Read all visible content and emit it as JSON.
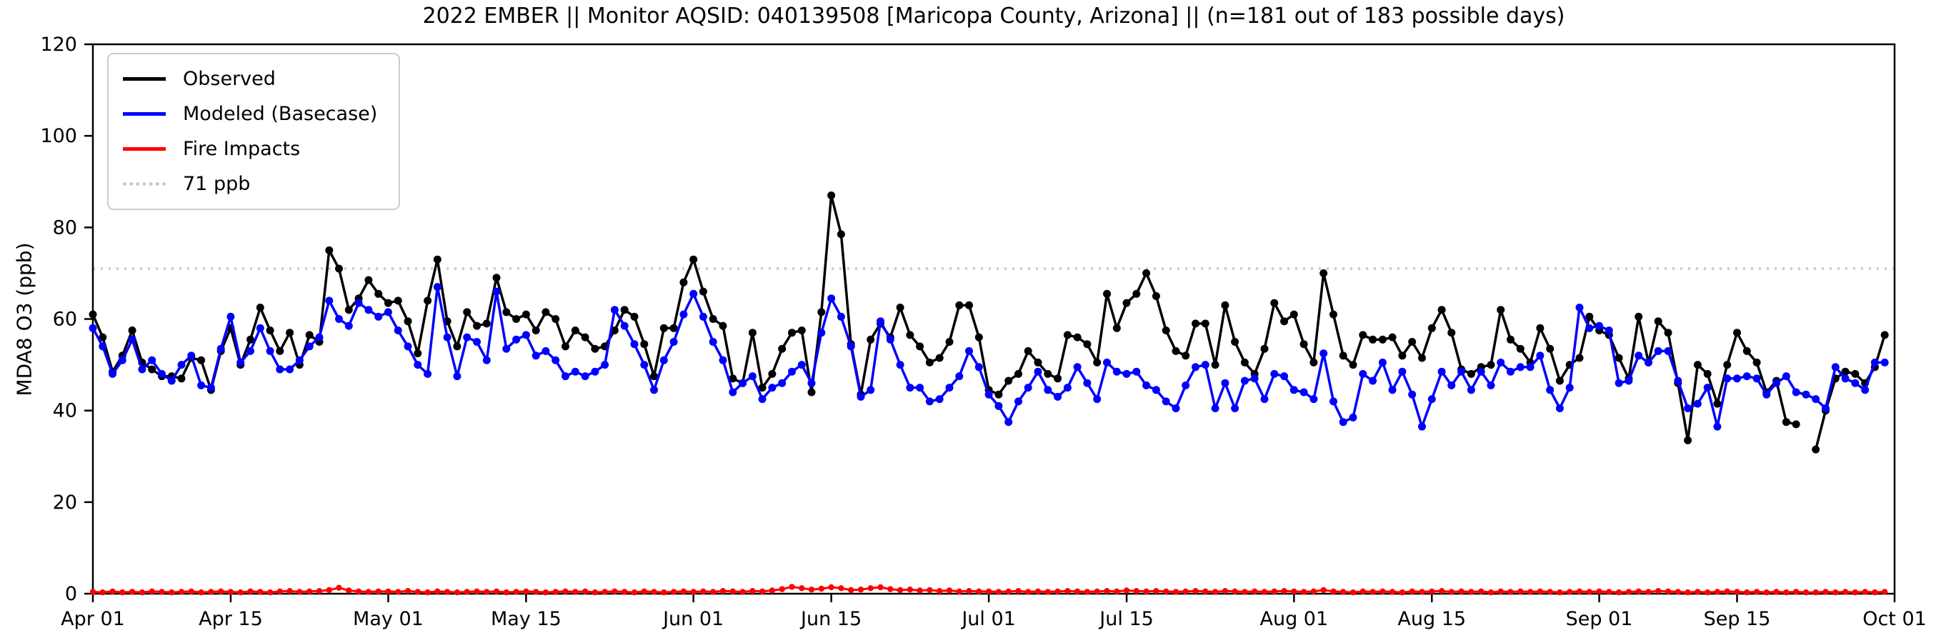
{
  "title": "2022 EMBER || Monitor AQSID: 040139508 [Maricopa County, Arizona] || (n=181 out of 183 possible days)",
  "y_axis": {
    "label": "MDA8 O3 (ppb)"
  },
  "legend": {
    "items": [
      {
        "label": "Observed",
        "color": "#000000",
        "style": "solid"
      },
      {
        "label": "Modeled (Basecase)",
        "color": "#0000ff",
        "style": "solid"
      },
      {
        "label": "Fire Impacts",
        "color": "#ff0000",
        "style": "solid"
      },
      {
        "label": "71 ppb",
        "color": "#c9c9c9",
        "style": "dotted"
      }
    ]
  },
  "chart_data": {
    "type": "line",
    "title": "2022 EMBER || Monitor AQSID: 040139508 [Maricopa County, Arizona] || (n=181 out of 183 possible days)",
    "xlabel": "",
    "ylabel": "MDA8 O3 (ppb)",
    "ylim": [
      0,
      120
    ],
    "y_ticks": [
      0,
      20,
      40,
      60,
      80,
      100,
      120
    ],
    "x_start": "Apr 01 2022",
    "x_end": "Oct 01 2022",
    "total_days": 183,
    "x_tick_days": [
      0,
      14,
      30,
      44,
      61,
      75,
      91,
      105,
      122,
      136,
      153,
      167,
      183
    ],
    "x_tick_labels": [
      "Apr 01",
      "Apr 15",
      "May 01",
      "May 15",
      "Jun 01",
      "Jun 15",
      "Jul 01",
      "Jul 15",
      "Aug 01",
      "Aug 15",
      "Sep 01",
      "Sep 15",
      "Oct 01"
    ],
    "grid": false,
    "legend_position": "upper left",
    "reference_line": {
      "label": "71 ppb",
      "value": 71,
      "color": "#c9c9c9",
      "style": "dotted"
    },
    "series": [
      {
        "name": "Observed",
        "color": "#000000",
        "values": [
          61,
          56,
          48.5,
          52,
          57.5,
          50.5,
          49,
          47.5,
          47.5,
          47,
          51.5,
          51,
          44.5,
          53,
          58,
          50,
          55.5,
          62.5,
          57.5,
          53,
          57,
          50,
          56.5,
          55,
          75,
          71,
          62,
          64.5,
          68.5,
          65.5,
          63.5,
          64,
          59.5,
          52.5,
          64,
          73,
          59.5,
          54,
          61.5,
          58.5,
          59,
          69,
          61.5,
          60,
          61,
          57.5,
          61.5,
          60,
          54,
          57.5,
          56,
          53.5,
          54,
          57.5,
          62,
          60.5,
          54.5,
          47.5,
          58,
          58,
          68,
          73,
          66,
          60,
          58.5,
          47,
          46,
          57,
          45,
          48,
          53.5,
          57,
          57.5,
          44,
          61.5,
          87,
          78.5,
          54.5,
          43.5,
          55.5,
          59,
          56,
          62.5,
          56.5,
          54,
          50.5,
          51.5,
          55,
          63,
          63,
          56,
          44.5,
          43.5,
          46.5,
          48,
          53,
          50.5,
          48,
          47,
          56.5,
          56,
          54.5,
          50.5,
          65.5,
          58,
          63.5,
          65.5,
          70,
          65,
          57.5,
          53,
          52,
          59,
          59,
          50,
          63,
          55,
          50.5,
          48,
          53.5,
          63.5,
          59.5,
          61,
          54.5,
          50.5,
          70,
          61,
          52,
          50,
          56.5,
          55.5,
          55.5,
          56,
          52,
          55,
          51.5,
          58,
          62,
          57,
          49,
          48,
          49.5,
          50,
          62,
          55.5,
          53.5,
          50.5,
          58,
          53.5,
          46.5,
          50,
          51.5,
          60.5,
          57.5,
          56.5,
          51.5,
          47,
          60.5,
          50.5,
          59.5,
          57,
          46,
          33.5,
          50,
          48,
          41.5,
          50,
          57,
          53,
          50.5,
          44,
          46.5,
          37.5,
          37,
          null,
          31.5,
          40,
          47,
          48.5,
          48,
          46,
          49.5,
          56.5
        ]
      },
      {
        "name": "Modeled (Basecase)",
        "color": "#0000ff",
        "values": [
          58,
          54,
          48,
          51,
          55.5,
          49,
          51,
          48,
          46.5,
          50,
          52,
          45.5,
          45,
          53.5,
          60.5,
          50.5,
          53,
          58,
          53,
          49,
          49,
          51,
          54,
          56,
          64,
          60,
          58.5,
          63.5,
          62,
          60.5,
          61.5,
          57.5,
          54,
          50,
          48,
          67,
          56,
          47.5,
          56,
          55,
          51,
          66,
          53.5,
          55.5,
          56.5,
          52,
          53,
          51,
          47.5,
          48.5,
          47.5,
          48.5,
          50,
          62,
          58.5,
          54.5,
          50,
          44.5,
          51,
          55,
          61,
          65.5,
          60.5,
          55,
          51,
          44,
          46,
          47.5,
          42.5,
          45,
          46,
          48.5,
          50,
          46,
          57,
          64.5,
          60.5,
          54,
          43,
          44.5,
          59.5,
          55.5,
          50,
          45,
          45,
          42,
          42.5,
          45,
          47.5,
          53,
          49.5,
          43.5,
          41,
          37.5,
          42,
          45,
          48.5,
          44.5,
          43,
          45,
          49.5,
          46,
          42.5,
          50.5,
          48.5,
          48,
          48.5,
          45.5,
          44.5,
          42,
          40.5,
          45.5,
          49.5,
          50,
          40.5,
          46,
          40.5,
          46.5,
          47,
          42.5,
          48,
          47.5,
          44.5,
          44,
          42.5,
          52.5,
          42,
          37.5,
          38.5,
          48,
          46.5,
          50.5,
          44.5,
          48.5,
          43.5,
          36.5,
          42.5,
          48.5,
          45.5,
          48.5,
          44.5,
          48.5,
          45.5,
          50.5,
          48.5,
          49.5,
          49.5,
          52,
          44.5,
          40.5,
          45,
          62.5,
          58,
          58.5,
          57.5,
          46,
          46.5,
          52,
          50.5,
          53,
          53,
          46.5,
          40.5,
          41.5,
          45,
          36.5,
          47,
          47,
          47.5,
          47,
          43.5,
          46,
          47.5,
          44,
          43.5,
          42.5,
          40.5,
          49.5,
          47,
          46,
          44.5,
          50.5,
          50.5
        ]
      },
      {
        "name": "Fire Impacts",
        "color": "#ff0000",
        "values": [
          0.4,
          0.3,
          0.5,
          0.3,
          0.4,
          0.3,
          0.5,
          0.4,
          0.3,
          0.4,
          0.5,
          0.3,
          0.4,
          0.5,
          0.4,
          0.3,
          0.5,
          0.4,
          0.3,
          0.5,
          0.6,
          0.4,
          0.5,
          0.6,
          0.8,
          1.3,
          0.7,
          0.5,
          0.4,
          0.5,
          0.5,
          0.4,
          0.6,
          0.4,
          0.3,
          0.5,
          0.4,
          0.3,
          0.4,
          0.5,
          0.4,
          0.5,
          0.3,
          0.4,
          0.5,
          0.4,
          0.3,
          0.4,
          0.5,
          0.4,
          0.5,
          0.3,
          0.4,
          0.5,
          0.4,
          0.3,
          0.5,
          0.4,
          0.3,
          0.4,
          0.5,
          0.4,
          0.5,
          0.4,
          0.6,
          0.5,
          0.4,
          0.6,
          0.5,
          0.7,
          1.0,
          1.5,
          1.2,
          0.9,
          1.1,
          1.4,
          1.2,
          0.8,
          0.9,
          1.2,
          1.4,
          1.0,
          0.8,
          0.9,
          0.7,
          0.8,
          0.6,
          0.7,
          0.5,
          0.6,
          0.5,
          0.5,
          0.4,
          0.5,
          0.6,
          0.4,
          0.5,
          0.4,
          0.5,
          0.6,
          0.5,
          0.4,
          0.5,
          0.6,
          0.5,
          0.7,
          0.6,
          0.5,
          0.6,
          0.5,
          0.4,
          0.5,
          0.6,
          0.5,
          0.4,
          0.6,
          0.5,
          0.4,
          0.5,
          0.4,
          0.5,
          0.6,
          0.5,
          0.4,
          0.5,
          0.8,
          0.5,
          0.4,
          0.3,
          0.5,
          0.4,
          0.5,
          0.4,
          0.3,
          0.5,
          0.4,
          0.5,
          0.6,
          0.4,
          0.5,
          0.4,
          0.5,
          0.3,
          0.5,
          0.4,
          0.5,
          0.4,
          0.5,
          0.4,
          0.3,
          0.4,
          0.5,
          0.4,
          0.5,
          0.4,
          0.3,
          0.4,
          0.5,
          0.4,
          0.6,
          0.5,
          0.4,
          0.3,
          0.4,
          0.3,
          0.4,
          0.5,
          0.4,
          0.3,
          0.4,
          0.3,
          0.4,
          0.3,
          0.4,
          0.3,
          0.3,
          0.4,
          0.3,
          0.4,
          0.3,
          0.4,
          0.3,
          0.4
        ]
      }
    ]
  }
}
